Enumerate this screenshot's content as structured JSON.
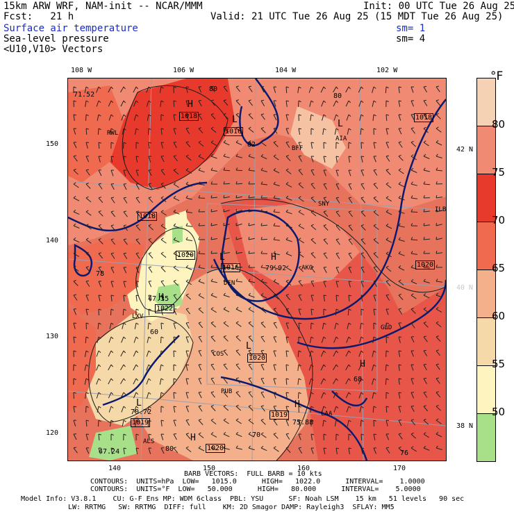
{
  "header": {
    "model": "15km ARW WRF, NAM-init -- NCAR/MMM",
    "init": "Init: 00 UTC Tue 26 Aug 25",
    "fcst": "Fcst:   21 h",
    "valid": "Valid: 21 UTC Tue 26 Aug 25 (15 MDT Tue 26 Aug 25)",
    "field1": "Surface air temperature",
    "field2": "Sea-level pressure",
    "field3": "<U10,V10> Vectors",
    "sm1": "sm= 1",
    "sm2": "sm= 4"
  },
  "axes": {
    "top_lon": [
      "108 W",
      "106 W",
      "104 W",
      "102 W"
    ],
    "left_y": [
      "150",
      "140",
      "130",
      "120"
    ],
    "bottom_x": [
      "140",
      "150",
      "160",
      "170"
    ],
    "right_lat": [
      "42 N",
      "40 N",
      "38 N"
    ]
  },
  "colorbar": {
    "unit": "°F",
    "labels": [
      "80",
      "75",
      "70",
      "65",
      "60",
      "55",
      "50"
    ],
    "colors": [
      "#f6d2b4",
      "#f08a72",
      "#e83a2c",
      "#f06a50",
      "#f3b08a",
      "#f6d9a8",
      "#fdf4c0",
      "#a8e08a"
    ]
  },
  "map": {
    "cities": [
      "RWL",
      "BFF",
      "AIA",
      "SNY",
      "ILBE",
      "DEN",
      "AKO",
      "LXV",
      "COS",
      "GLD",
      "PUB",
      "LAA",
      "ALS"
    ],
    "pressure_boxes": [
      "1018",
      "1016",
      "1018",
      "1018",
      "1020",
      "1016",
      "1020",
      "1022",
      "1020",
      "1019",
      "1019",
      "1020"
    ],
    "temp_labels": [
      "71.52",
      "80",
      "80",
      "82",
      "79.92",
      "47.35",
      "60",
      "70.72",
      "68",
      "75.88",
      "70",
      "47.24",
      "80",
      "78",
      "76"
    ],
    "hl_letters": [
      "H",
      "L",
      "L",
      "L",
      "H",
      "H",
      "L",
      "H",
      "H",
      "L",
      "H"
    ]
  },
  "footer": {
    "barb": "BARB VECTORS:  FULL BARB = 10 kts",
    "contours1": "CONTOURS:  UNITS=hPa  LOW=   1015.0      HIGH=   1022.0      INTERVAL=    1.0000",
    "contours2": "CONTOURS:  UNITS=°F  LOW=   50.000      HIGH=   80.000      INTERVAL=    5.0000",
    "model_info1": "Model Info: V3.8.1    CU: G-F Ens MP: WDM 6class  PBL: YSU      SF: Noah LSM    15 km   51 levels   90 sec",
    "model_info2": "LW: RRTMG   SW: RRTMG  DIFF: full    KM: 2D Smagor DAMP: Rayleigh3  SFLAY: MM5"
  }
}
